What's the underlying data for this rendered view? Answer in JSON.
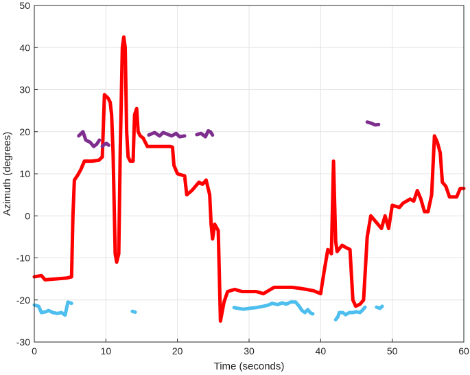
{
  "chart_data": {
    "type": "line",
    "title": "",
    "xlabel": "Time (seconds)",
    "ylabel": "Azimuth (degrees)",
    "xlim": [
      0,
      60
    ],
    "ylim": [
      -30,
      50
    ],
    "xticks": [
      "0",
      "10",
      "20",
      "30",
      "40",
      "50",
      "60"
    ],
    "yticks": [
      "-30",
      "-20",
      "-10",
      "0",
      "10",
      "20",
      "30",
      "40",
      "50"
    ],
    "grid": true,
    "legend": "none",
    "colors": {
      "red": "#ff0000",
      "purple": "#7e2f8e",
      "cyan": "#4dbeee"
    },
    "series": [
      {
        "color": "#ff0000",
        "segments": [
          [
            [
              0,
              -14.5
            ],
            [
              1,
              -14.2
            ],
            [
              1.5,
              -15.2
            ],
            [
              3,
              -15
            ],
            [
              4.5,
              -14.8
            ],
            [
              5.2,
              -14.5
            ],
            [
              5.4,
              0
            ],
            [
              5.6,
              8.5
            ],
            [
              6,
              9.5
            ],
            [
              6.5,
              11
            ],
            [
              7,
              13
            ],
            [
              8,
              13
            ],
            [
              9,
              13.2
            ],
            [
              9.5,
              14
            ],
            [
              9.8,
              28.8
            ],
            [
              10.3,
              28
            ],
            [
              10.6,
              27
            ],
            [
              10.8,
              24
            ],
            [
              11,
              15
            ],
            [
              11.3,
              -9
            ],
            [
              11.5,
              -11
            ],
            [
              11.8,
              -9
            ],
            [
              12,
              15
            ],
            [
              12.3,
              40
            ],
            [
              12.5,
              42.5
            ],
            [
              12.7,
              40
            ],
            [
              12.9,
              20
            ],
            [
              13.1,
              14
            ],
            [
              13.4,
              13
            ],
            [
              13.8,
              13
            ],
            [
              14,
              24
            ],
            [
              14.3,
              25.5
            ],
            [
              14.5,
              20
            ],
            [
              14.8,
              19
            ],
            [
              15.2,
              18.5
            ],
            [
              15.8,
              16.5
            ],
            [
              17,
              16.5
            ],
            [
              19,
              16.5
            ],
            [
              19.3,
              16.3
            ],
            [
              19.5,
              12
            ],
            [
              20,
              10
            ],
            [
              21,
              9.5
            ],
            [
              21.3,
              5
            ],
            [
              22,
              6
            ],
            [
              22.5,
              7
            ],
            [
              23,
              8
            ],
            [
              23.5,
              7.5
            ],
            [
              24,
              8.5
            ],
            [
              24.5,
              5
            ],
            [
              24.7,
              -2
            ],
            [
              24.9,
              -5.5
            ],
            [
              25.2,
              -2
            ],
            [
              25.7,
              -3.5
            ],
            [
              26,
              -25
            ],
            [
              26.5,
              -20.5
            ],
            [
              27,
              -18
            ],
            [
              28,
              -17.5
            ],
            [
              29,
              -18
            ],
            [
              30,
              -18
            ],
            [
              31,
              -18
            ],
            [
              32,
              -18.5
            ],
            [
              32.5,
              -18
            ],
            [
              33.5,
              -17
            ],
            [
              35,
              -17
            ],
            [
              36,
              -17
            ],
            [
              37,
              -17.2
            ],
            [
              38,
              -17.5
            ],
            [
              39,
              -17.8
            ],
            [
              40,
              -18.5
            ],
            [
              40.5,
              -13
            ],
            [
              41,
              -8
            ],
            [
              41.5,
              -9
            ],
            [
              41.8,
              13
            ],
            [
              42.1,
              -6
            ],
            [
              42.3,
              -8.5
            ],
            [
              43,
              -7
            ],
            [
              43.5,
              -7.5
            ],
            [
              44.1,
              -8
            ],
            [
              44.5,
              -20
            ],
            [
              44.9,
              -21.5
            ],
            [
              45.5,
              -21
            ],
            [
              46,
              -20
            ],
            [
              46.5,
              -5
            ],
            [
              47,
              0
            ],
            [
              48,
              -2
            ],
            [
              48.5,
              -3
            ],
            [
              49,
              0
            ],
            [
              49.5,
              -3
            ],
            [
              50,
              2.5
            ],
            [
              51,
              2
            ],
            [
              51.5,
              3
            ],
            [
              52.5,
              4
            ],
            [
              53,
              3.5
            ],
            [
              53.5,
              6
            ],
            [
              54,
              4
            ],
            [
              54.5,
              1
            ],
            [
              55,
              1
            ],
            [
              55.5,
              5
            ],
            [
              55.9,
              19
            ],
            [
              56.3,
              17.5
            ],
            [
              56.7,
              15
            ],
            [
              57,
              8
            ],
            [
              57.5,
              7
            ],
            [
              58,
              4.5
            ],
            [
              59,
              4.5
            ],
            [
              59.5,
              6.5
            ],
            [
              60,
              6.5
            ]
          ]
        ]
      },
      {
        "color": "#7e2f8e",
        "segments": [
          [
            [
              6.2,
              19
            ],
            [
              6.8,
              20
            ],
            [
              7.2,
              18
            ],
            [
              7.8,
              17.5
            ],
            [
              8.3,
              16.5
            ],
            [
              8.7,
              17
            ],
            [
              9.1,
              18
            ]
          ],
          [
            [
              9.5,
              16.5
            ],
            [
              9.8,
              17
            ],
            [
              10.1,
              17.2
            ],
            [
              10.4,
              16.8
            ]
          ],
          [
            [
              16,
              19.2
            ],
            [
              16.8,
              19.8
            ],
            [
              17.5,
              19
            ],
            [
              18,
              19.8
            ],
            [
              18.6,
              19.4
            ],
            [
              19.2,
              19
            ],
            [
              19.8,
              19.6
            ],
            [
              20.3,
              18.8
            ],
            [
              21,
              19
            ]
          ],
          [
            [
              22.7,
              19.3
            ],
            [
              23.3,
              19.6
            ],
            [
              23.9,
              18.8
            ],
            [
              24.3,
              20.2
            ],
            [
              24.6,
              20
            ],
            [
              24.9,
              19.2
            ]
          ],
          [
            [
              46.5,
              22.3
            ],
            [
              47.1,
              22
            ],
            [
              47.6,
              21.6
            ],
            [
              48.1,
              21.7
            ]
          ]
        ]
      },
      {
        "color": "#4dbeee",
        "segments": [
          [
            [
              0,
              -21.2
            ],
            [
              0.6,
              -21.5
            ],
            [
              1,
              -23
            ],
            [
              1.6,
              -22.8
            ],
            [
              2,
              -22.5
            ],
            [
              2.6,
              -23
            ],
            [
              3.2,
              -23.2
            ],
            [
              3.8,
              -23
            ],
            [
              4.3,
              -23.6
            ],
            [
              4.7,
              -20.5
            ],
            [
              5.2,
              -20.8
            ]
          ],
          [
            [
              13.7,
              -22.7
            ],
            [
              14.1,
              -22.9
            ]
          ],
          [
            [
              27.9,
              -21.8
            ],
            [
              28.5,
              -22
            ],
            [
              29.2,
              -22.2
            ],
            [
              30,
              -22
            ],
            [
              31,
              -21.8
            ],
            [
              32,
              -21.5
            ],
            [
              32.7,
              -21.2
            ],
            [
              33.2,
              -20.8
            ],
            [
              34,
              -21.1
            ],
            [
              34.6,
              -20.7
            ],
            [
              35.2,
              -21
            ],
            [
              35.8,
              -20.5
            ],
            [
              36.5,
              -20.5
            ],
            [
              37,
              -21.5
            ],
            [
              37.4,
              -22.5
            ],
            [
              37.8,
              -23
            ],
            [
              38.2,
              -22.3
            ],
            [
              38.6,
              -23.1
            ],
            [
              38.9,
              -23.3
            ]
          ],
          [
            [
              42.1,
              -24.7
            ],
            [
              42.4,
              -24
            ],
            [
              42.6,
              -23
            ],
            [
              43.1,
              -23
            ],
            [
              43.5,
              -23.5
            ],
            [
              44,
              -23
            ],
            [
              44.5,
              -23
            ],
            [
              45,
              -22.8
            ],
            [
              45.5,
              -23
            ],
            [
              45.8,
              -22.5
            ],
            [
              46.2,
              -21.7
            ]
          ],
          [
            [
              47.8,
              -21.7
            ],
            [
              48.3,
              -22
            ],
            [
              48.6,
              -21.5
            ]
          ]
        ]
      }
    ]
  }
}
